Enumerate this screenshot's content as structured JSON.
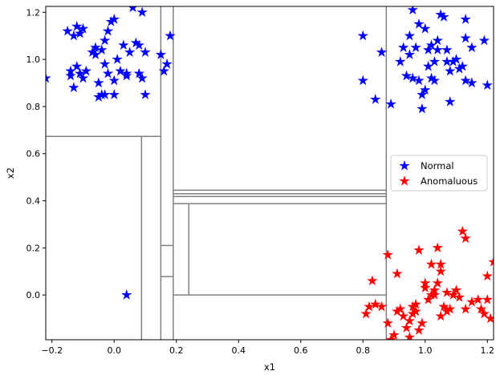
{
  "chart_data": {
    "type": "scatter",
    "title": "",
    "xlabel": "x1",
    "ylabel": "x2",
    "xlim": [
      -0.22,
      1.22
    ],
    "ylim": [
      -0.19,
      1.225
    ],
    "xticks": [
      -0.2,
      0.0,
      0.2,
      0.4,
      0.6,
      0.8,
      1.0,
      1.2
    ],
    "xtick_labels": [
      "−0.2",
      "0.0",
      "0.2",
      "0.4",
      "0.6",
      "0.8",
      "1.0",
      "1.2"
    ],
    "yticks": [
      0.0,
      0.2,
      0.4,
      0.6,
      0.8,
      1.0,
      1.2
    ],
    "ytick_labels": [
      "0.0",
      "0.2",
      "0.4",
      "0.6",
      "0.8",
      "1.0",
      "1.2"
    ],
    "grid": false,
    "legend_position": "center-right",
    "marker": "star",
    "split_color": "#808080",
    "series": [
      {
        "name": "Normal",
        "color": "#0000ff",
        "points": [
          [
            -0.22,
            0.92
          ],
          [
            -0.14,
            0.93
          ],
          [
            -0.14,
            0.95
          ],
          [
            -0.15,
            1.12
          ],
          [
            -0.13,
            1.1
          ],
          [
            -0.12,
            1.14
          ],
          [
            -0.1,
            1.13
          ],
          [
            -0.11,
            1.11
          ],
          [
            -0.12,
            0.97
          ],
          [
            -0.13,
            0.88
          ],
          [
            -0.11,
            0.94
          ],
          [
            -0.1,
            0.92
          ],
          [
            -0.09,
            0.95
          ],
          [
            -0.07,
            1.03
          ],
          [
            -0.06,
            1.05
          ],
          [
            -0.06,
            1.02
          ],
          [
            -0.04,
            1.04
          ],
          [
            -0.03,
            1.08
          ],
          [
            -0.03,
            0.98
          ],
          [
            -0.02,
            0.94
          ],
          [
            -0.05,
            0.9
          ],
          [
            -0.04,
            0.85
          ],
          [
            -0.05,
            0.84
          ],
          [
            -0.03,
            0.85
          ],
          [
            0.0,
            0.91
          ],
          [
            0.0,
            0.85
          ],
          [
            -0.02,
            1.12
          ],
          [
            -0.01,
            1.16
          ],
          [
            0.0,
            1.17
          ],
          [
            0.01,
            1.0
          ],
          [
            0.02,
            0.95
          ],
          [
            0.03,
            1.06
          ],
          [
            0.04,
            0.93
          ],
          [
            0.04,
            0.94
          ],
          [
            0.05,
            1.03
          ],
          [
            0.06,
            1.22
          ],
          [
            0.07,
            1.07
          ],
          [
            0.08,
            1.06
          ],
          [
            0.08,
            0.94
          ],
          [
            0.09,
            0.92
          ],
          [
            0.09,
            1.2
          ],
          [
            0.1,
            1.03
          ],
          [
            0.1,
            0.85
          ],
          [
            0.15,
            1.02
          ],
          [
            0.16,
            0.95
          ],
          [
            0.17,
            0.98
          ],
          [
            0.18,
            1.1
          ],
          [
            0.04,
            0.0
          ],
          [
            0.8,
            1.1
          ],
          [
            0.8,
            0.91
          ],
          [
            0.84,
            0.83
          ],
          [
            0.86,
            1.03
          ],
          [
            0.89,
            0.81
          ],
          [
            0.92,
            0.99
          ],
          [
            0.93,
            1.05
          ],
          [
            0.94,
            0.93
          ],
          [
            0.95,
            1.1
          ],
          [
            0.95,
            1.02
          ],
          [
            0.96,
            1.21
          ],
          [
            0.96,
            0.92
          ],
          [
            0.97,
            1.05
          ],
          [
            0.98,
            1.15
          ],
          [
            0.98,
            0.91
          ],
          [
            0.99,
            0.85
          ],
          [
            0.99,
            0.79
          ],
          [
            1.0,
            1.13
          ],
          [
            1.0,
            0.87
          ],
          [
            1.01,
            1.04
          ],
          [
            1.01,
            0.97
          ],
          [
            1.02,
            1.06
          ],
          [
            1.02,
            0.92
          ],
          [
            1.03,
            0.91
          ],
          [
            1.03,
            0.99
          ],
          [
            1.04,
            1.08
          ],
          [
            1.04,
            1.04
          ],
          [
            1.05,
            1.19
          ],
          [
            1.06,
            1.18
          ],
          [
            1.07,
            1.04
          ],
          [
            1.07,
            0.99
          ],
          [
            1.08,
            0.95
          ],
          [
            1.08,
            0.82
          ],
          [
            1.09,
            0.99
          ],
          [
            1.1,
            1.0
          ],
          [
            1.11,
            0.96
          ],
          [
            1.12,
            0.97
          ],
          [
            1.13,
            1.17
          ],
          [
            1.13,
            1.09
          ],
          [
            1.13,
            0.91
          ],
          [
            1.15,
            1.05
          ],
          [
            1.15,
            0.9
          ],
          [
            1.19,
            1.08
          ],
          [
            1.2,
            0.89
          ]
        ]
      },
      {
        "name": "Anomaluous",
        "color": "#ff0000",
        "points": [
          [
            0.81,
            -0.08
          ],
          [
            0.82,
            -0.05
          ],
          [
            0.83,
            0.06
          ],
          [
            0.84,
            -0.04
          ],
          [
            0.86,
            -0.05
          ],
          [
            0.88,
            0.17
          ],
          [
            0.88,
            -0.12
          ],
          [
            0.89,
            -0.19
          ],
          [
            0.9,
            -0.17
          ],
          [
            0.91,
            0.09
          ],
          [
            0.91,
            -0.07
          ],
          [
            0.92,
            -0.06
          ],
          [
            0.93,
            -0.09
          ],
          [
            0.94,
            -0.14
          ],
          [
            0.95,
            -0.11
          ],
          [
            0.95,
            -0.18
          ],
          [
            0.96,
            -0.05
          ],
          [
            0.96,
            -0.08
          ],
          [
            0.97,
            -0.07
          ],
          [
            0.97,
            -0.04
          ],
          [
            0.98,
            0.19
          ],
          [
            0.98,
            -0.15
          ],
          [
            0.99,
            -0.12
          ],
          [
            1.0,
            0.03
          ],
          [
            1.0,
            0.05
          ],
          [
            1.01,
            -0.02
          ],
          [
            1.02,
            0.0
          ],
          [
            1.02,
            0.13
          ],
          [
            1.03,
            0.02
          ],
          [
            1.03,
            0.0
          ],
          [
            1.04,
            0.2
          ],
          [
            1.04,
            0.05
          ],
          [
            1.05,
            -0.09
          ],
          [
            1.05,
            0.1
          ],
          [
            1.05,
            0.13
          ],
          [
            1.06,
            -0.05
          ],
          [
            1.07,
            0.01
          ],
          [
            1.07,
            -0.07
          ],
          [
            1.08,
            -0.06
          ],
          [
            1.09,
            0.0
          ],
          [
            1.1,
            0.02
          ],
          [
            1.11,
            -0.01
          ],
          [
            1.12,
            0.27
          ],
          [
            1.13,
            0.24
          ],
          [
            1.13,
            -0.06
          ],
          [
            1.15,
            -0.03
          ],
          [
            1.17,
            -0.02
          ],
          [
            1.18,
            -0.06
          ],
          [
            1.19,
            -0.08
          ],
          [
            1.2,
            0.08
          ],
          [
            1.2,
            -0.02
          ],
          [
            1.21,
            -0.1
          ],
          [
            1.22,
            0.14
          ]
        ]
      }
    ],
    "splits": [
      {
        "orientation": "h",
        "at": 0.673,
        "from": -0.22,
        "to": 0.15
      },
      {
        "orientation": "v",
        "at": 0.088,
        "from": -0.19,
        "to": 0.673
      },
      {
        "orientation": "v",
        "at": 0.15,
        "from": -0.19,
        "to": 1.225
      },
      {
        "orientation": "v",
        "at": 0.19,
        "from": -0.19,
        "to": 1.225
      },
      {
        "orientation": "h",
        "at": 0.21,
        "from": 0.15,
        "to": 0.19
      },
      {
        "orientation": "h",
        "at": 0.078,
        "from": 0.15,
        "to": 0.19
      },
      {
        "orientation": "v",
        "at": 0.875,
        "from": -0.19,
        "to": 1.225
      },
      {
        "orientation": "h",
        "at": 0.445,
        "from": 0.19,
        "to": 0.875
      },
      {
        "orientation": "h",
        "at": 0.43,
        "from": 0.19,
        "to": 0.875
      },
      {
        "orientation": "h",
        "at": 0.418,
        "from": 0.19,
        "to": 0.875
      },
      {
        "orientation": "h",
        "at": 0.388,
        "from": 0.19,
        "to": 0.875
      },
      {
        "orientation": "v",
        "at": 0.24,
        "from": 0.0,
        "to": 0.388
      },
      {
        "orientation": "h",
        "at": 0.0,
        "from": 0.19,
        "to": 0.875
      }
    ]
  }
}
